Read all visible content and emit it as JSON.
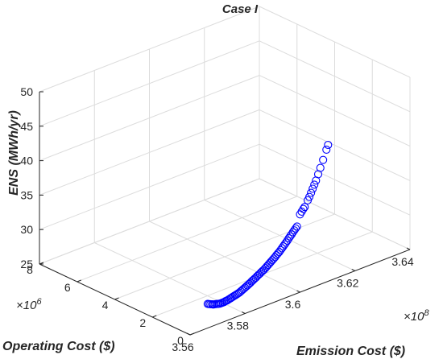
{
  "chart_data": {
    "type": "scatter",
    "title": "Case I",
    "xlabel": "Emission Cost ($)",
    "ylabel": "Operating Cost ($)",
    "zlabel": "ENS (MWh/yr)",
    "x_exponent": {
      "base": "×10",
      "power": "8"
    },
    "y_exponent": {
      "base": "×10",
      "power": "6"
    },
    "xlim": [
      3.56,
      3.64
    ],
    "ylim": [
      0,
      8
    ],
    "zlim": [
      25,
      50
    ],
    "x_ticks": [
      "3.56",
      "3.58",
      "3.6",
      "3.62",
      "3.64"
    ],
    "y_ticks": [
      "0",
      "2",
      "4",
      "6",
      "8"
    ],
    "z_ticks": [
      "25",
      "30",
      "35",
      "40",
      "45",
      "50"
    ],
    "grid": true,
    "marker": "circle",
    "marker_color": "#0000ff",
    "points_yz_const": {
      "y": 0,
      "z": 25
    },
    "x": [
      3.5664,
      3.5669,
      3.5674,
      3.568,
      3.5684,
      3.5689,
      3.5695,
      3.57,
      3.5704,
      3.5709,
      3.5714,
      3.5719,
      3.5724,
      3.5729,
      3.5734,
      3.5739,
      3.5745,
      3.5749,
      3.5754,
      3.5759,
      3.5764,
      3.5769,
      3.5774,
      3.5779,
      3.5784,
      3.5789,
      3.5794,
      3.5799,
      3.5804,
      3.5809,
      3.5814,
      3.5819,
      3.5824,
      3.5829,
      3.5834,
      3.5839,
      3.5844,
      3.5849,
      3.5854,
      3.5859,
      3.5864,
      3.5869,
      3.5874,
      3.5879,
      3.5884,
      3.5889,
      3.5894,
      3.5899,
      3.5904,
      3.5909,
      3.5914,
      3.5919,
      3.5924,
      3.5929,
      3.5934,
      3.5939,
      3.5944,
      3.5949,
      3.5954,
      3.5959,
      3.5964,
      3.5969,
      3.5974,
      3.5979,
      3.5984,
      3.5989,
      3.6,
      3.6006,
      3.6012,
      3.6017,
      3.6028,
      3.6034,
      3.604,
      3.6046,
      3.6052,
      3.6058,
      3.6066,
      3.6074,
      3.6084,
      3.6096,
      3.6102
    ],
    "z": [
      28.5,
      28.4,
      28.3,
      28.2,
      28.1,
      28.05,
      28.0,
      27.95,
      27.9,
      27.85,
      27.85,
      27.85,
      27.85,
      27.9,
      27.9,
      27.95,
      28.0,
      28.05,
      28.1,
      28.15,
      28.2,
      28.25,
      28.3,
      28.35,
      28.45,
      28.55,
      28.65,
      28.75,
      28.85,
      28.95,
      29.05,
      29.15,
      29.3,
      29.4,
      29.5,
      29.6,
      29.75,
      29.85,
      29.95,
      30.1,
      30.2,
      30.3,
      30.45,
      30.6,
      30.75,
      30.9,
      31.05,
      31.2,
      31.35,
      31.5,
      31.7,
      31.85,
      32.0,
      32.2,
      32.4,
      32.6,
      32.8,
      33.0,
      33.2,
      33.45,
      33.65,
      33.85,
      34.1,
      34.3,
      34.5,
      34.7,
      36.3,
      36.6,
      36.9,
      37.1,
      37.9,
      38.3,
      38.8,
      39.3,
      39.8,
      40.3,
      41.1,
      41.9,
      42.9,
      44.2,
      44.8
    ]
  }
}
